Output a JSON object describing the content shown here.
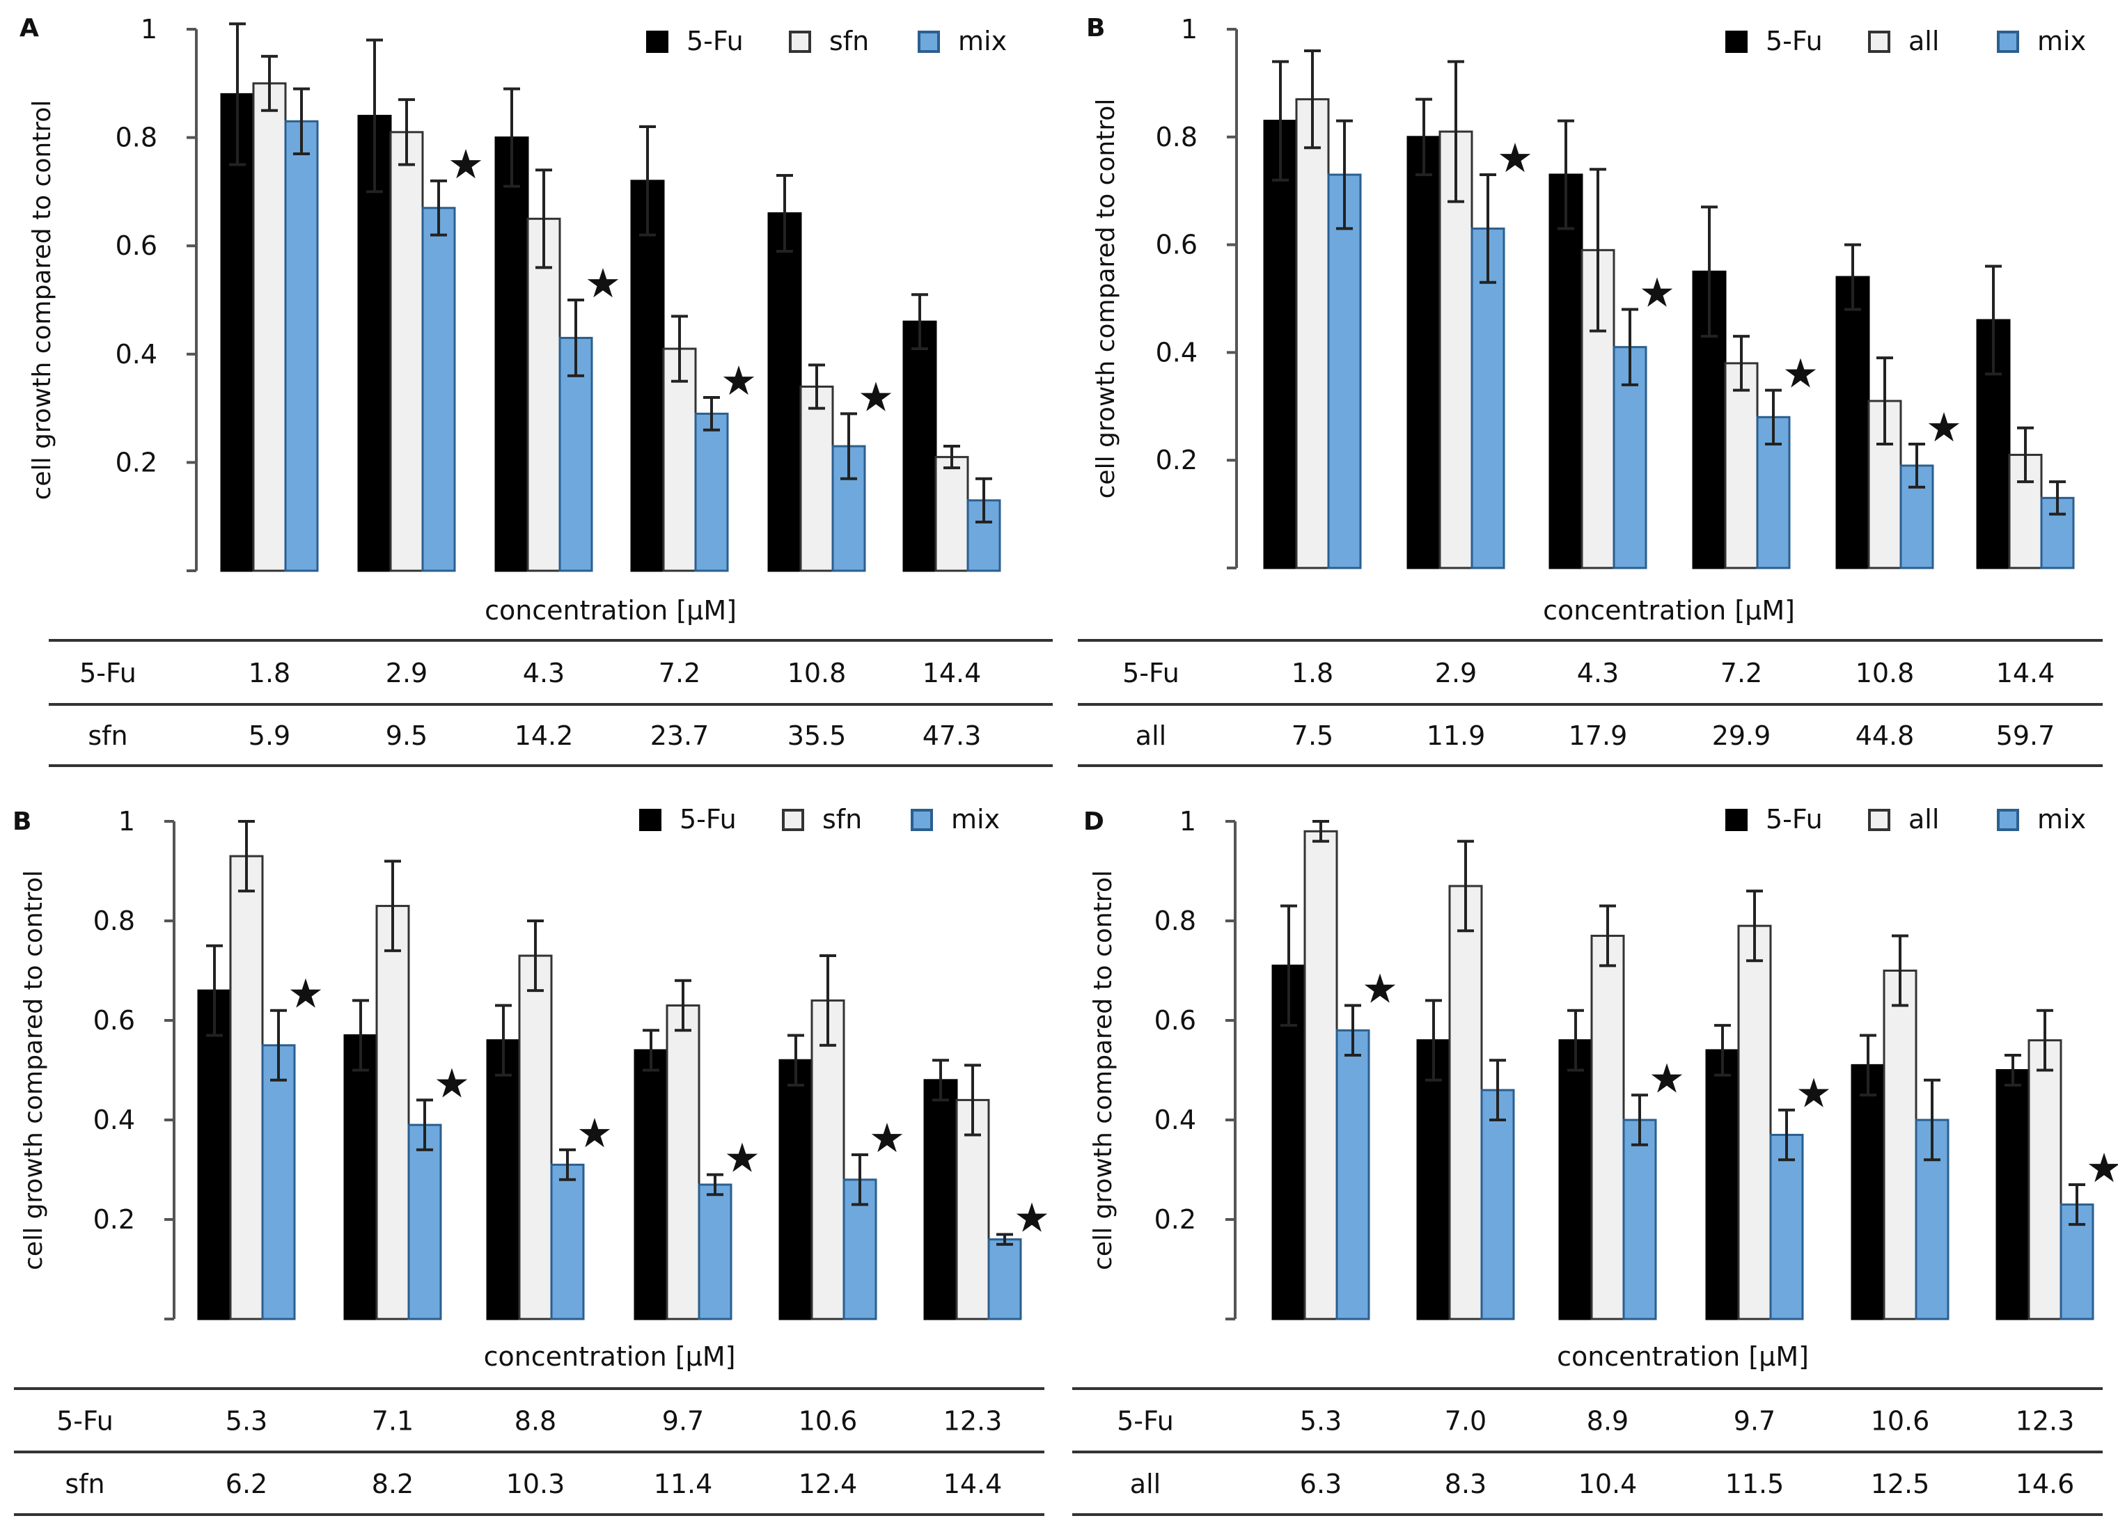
{
  "colors": {
    "fu": "#000000",
    "second": "#f0f0f0",
    "mix": "#6fa8dc",
    "mix_stroke": "#2b5f8f"
  },
  "chart_data": [
    {
      "type": "bar",
      "panel": "A",
      "ylabel": "cell growth compared to control",
      "xlabel": "concentration [µM]",
      "yticks": [
        "0.2",
        "0.4",
        "0.6",
        "0.8",
        "1"
      ],
      "ylim": [
        0,
        1
      ],
      "legend": [
        "5-Fu",
        "sfn",
        "mix"
      ],
      "series": [
        {
          "name": "5-Fu",
          "values": [
            0.88,
            0.84,
            0.8,
            0.72,
            0.66,
            0.46
          ],
          "errors": [
            0.13,
            0.14,
            0.09,
            0.1,
            0.07,
            0.05
          ]
        },
        {
          "name": "sfn",
          "values": [
            0.9,
            0.81,
            0.65,
            0.41,
            0.34,
            0.21
          ],
          "errors": [
            0.05,
            0.06,
            0.09,
            0.06,
            0.04,
            0.02
          ]
        },
        {
          "name": "mix",
          "values": [
            0.83,
            0.67,
            0.43,
            0.29,
            0.23,
            0.13
          ],
          "errors": [
            0.06,
            0.05,
            0.07,
            0.03,
            0.06,
            0.04
          ]
        }
      ],
      "stars": [
        false,
        true,
        true,
        true,
        true,
        false
      ],
      "table": {
        "row1_label": "5-Fu",
        "row1": [
          "1.8",
          "2.9",
          "4.3",
          "7.2",
          "10.8",
          "14.4"
        ],
        "row2_label": "sfn",
        "row2": [
          "5.9",
          "9.5",
          "14.2",
          "23.7",
          "35.5",
          "47.3"
        ]
      }
    },
    {
      "type": "bar",
      "panel": "B",
      "ylabel": "cell growth compared to control",
      "xlabel": "concentration [µM]",
      "yticks": [
        "0.2",
        "0.4",
        "0.6",
        "0.8",
        "1"
      ],
      "ylim": [
        0,
        1
      ],
      "legend": [
        "5-Fu",
        "all",
        "mix"
      ],
      "series": [
        {
          "name": "5-Fu",
          "values": [
            0.83,
            0.8,
            0.73,
            0.55,
            0.54,
            0.46
          ],
          "errors": [
            0.11,
            0.07,
            0.1,
            0.12,
            0.06,
            0.1
          ]
        },
        {
          "name": "all",
          "values": [
            0.87,
            0.81,
            0.59,
            0.38,
            0.31,
            0.21
          ],
          "errors": [
            0.09,
            0.13,
            0.15,
            0.05,
            0.08,
            0.05
          ]
        },
        {
          "name": "mix",
          "values": [
            0.73,
            0.63,
            0.41,
            0.28,
            0.19,
            0.13
          ],
          "errors": [
            0.1,
            0.1,
            0.07,
            0.05,
            0.04,
            0.03
          ]
        }
      ],
      "stars": [
        false,
        true,
        true,
        true,
        true,
        false
      ],
      "table": {
        "row1_label": "5-Fu",
        "row1": [
          "1.8",
          "2.9",
          "4.3",
          "7.2",
          "10.8",
          "14.4"
        ],
        "row2_label": "all",
        "row2": [
          "7.5",
          "11.9",
          "17.9",
          "29.9",
          "44.8",
          "59.7"
        ]
      }
    },
    {
      "type": "bar",
      "panel": "B",
      "ylabel": "cell growth compared to control",
      "xlabel": "concentration [µM]",
      "yticks": [
        "0.2",
        "0.4",
        "0.6",
        "0.8",
        "1"
      ],
      "ylim": [
        0,
        1
      ],
      "legend": [
        "5-Fu",
        "sfn",
        "mix"
      ],
      "series": [
        {
          "name": "5-Fu",
          "values": [
            0.66,
            0.57,
            0.56,
            0.54,
            0.52,
            0.48
          ],
          "errors": [
            0.09,
            0.07,
            0.07,
            0.04,
            0.05,
            0.04
          ]
        },
        {
          "name": "sfn",
          "values": [
            0.93,
            0.83,
            0.73,
            0.63,
            0.64,
            0.44
          ],
          "errors": [
            0.07,
            0.09,
            0.07,
            0.05,
            0.09,
            0.07
          ]
        },
        {
          "name": "mix",
          "values": [
            0.55,
            0.39,
            0.31,
            0.27,
            0.28,
            0.16
          ],
          "errors": [
            0.07,
            0.05,
            0.03,
            0.02,
            0.05,
            0.01
          ]
        }
      ],
      "stars": [
        true,
        true,
        true,
        true,
        true,
        true
      ],
      "table": {
        "row1_label": "5-Fu",
        "row1": [
          "5.3",
          "7.1",
          "8.8",
          "9.7",
          "10.6",
          "12.3"
        ],
        "row2_label": "sfn",
        "row2": [
          "6.2",
          "8.2",
          "10.3",
          "11.4",
          "12.4",
          "14.4"
        ]
      }
    },
    {
      "type": "bar",
      "panel": "D",
      "ylabel": "cell growth compared to control",
      "xlabel": "concentration [µM]",
      "yticks": [
        "0.2",
        "0.4",
        "0.6",
        "0.8",
        "1"
      ],
      "ylim": [
        0,
        1
      ],
      "legend": [
        "5-Fu",
        "all",
        "mix"
      ],
      "series": [
        {
          "name": "5-Fu",
          "values": [
            0.71,
            0.56,
            0.56,
            0.54,
            0.51,
            0.5
          ],
          "errors": [
            0.12,
            0.08,
            0.06,
            0.05,
            0.06,
            0.03
          ]
        },
        {
          "name": "all",
          "values": [
            0.98,
            0.87,
            0.77,
            0.79,
            0.7,
            0.56
          ],
          "errors": [
            0.02,
            0.09,
            0.06,
            0.07,
            0.07,
            0.06
          ]
        },
        {
          "name": "mix",
          "values": [
            0.58,
            0.46,
            0.4,
            0.37,
            0.4,
            0.23
          ],
          "errors": [
            0.05,
            0.06,
            0.05,
            0.05,
            0.08,
            0.04
          ]
        }
      ],
      "stars": [
        true,
        false,
        true,
        true,
        false,
        true
      ],
      "table": {
        "row1_label": "5-Fu",
        "row1": [
          "5.3",
          "7.0",
          "8.9",
          "9.7",
          "10.6",
          "12.3"
        ],
        "row2_label": "all",
        "row2": [
          "6.3",
          "8.3",
          "10.4",
          "11.5",
          "12.5",
          "14.6"
        ]
      }
    }
  ]
}
